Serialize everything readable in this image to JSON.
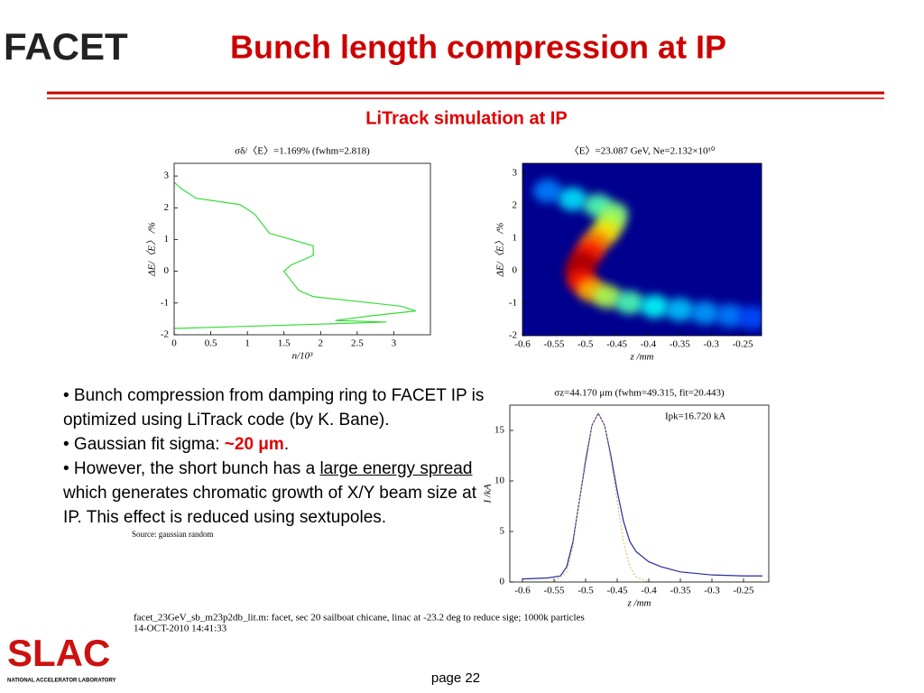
{
  "header": {
    "logo": "FACET",
    "title": "Bunch length compression at IP"
  },
  "subtitle": "LiTrack simulation at IP",
  "bullets": [
    [
      "• Bunch compression from damping ring to FACET IP is optimized using LiTrack code (by K. Bane)."
    ],
    [
      "• Gaussian fit sigma: ",
      "~20 μm",
      "."
    ],
    [
      "• However, the short bunch has a ",
      "large energy spread",
      " which generates chromatic growth of X/Y beam size at IP. This effect is reduced using sextupoles."
    ]
  ],
  "source": "Source: gaussian random",
  "footer": {
    "file": "facet_23GeV_sb_m23p2db_lit.m:  facet, sec 20 sailboat chicane, linac at -23.2 deg to reduce sige; 1000k particles",
    "date": "14-OCT-2010 14:41:33",
    "page": "page 22"
  },
  "lab": {
    "logo": "SLAC",
    "tagline": "NATIONAL ACCELERATOR LABORATORY"
  },
  "chart_data": [
    {
      "type": "line",
      "orientation": "horizontal",
      "title": "σδ/〈E〉=1.169% (fwhm=2.818)",
      "xlabel": "n/10³",
      "ylabel": "ΔE/〈E〉 /%",
      "xlim": [
        0,
        3.5
      ],
      "xticks": [
        0,
        0.5,
        1,
        1.5,
        2,
        2.5,
        3
      ],
      "ylim": [
        -2,
        3.4
      ],
      "yticks": [
        -2,
        -1,
        0,
        1,
        2,
        3
      ],
      "series": [
        {
          "color": "#33dd33",
          "y": [
            2.8,
            2.6,
            2.3,
            2.1,
            1.8,
            1.5,
            1.2,
            1.0,
            0.8,
            0.5,
            0.2,
            0,
            -0.3,
            -0.6,
            -0.8,
            -0.95,
            -1.1,
            -1.25,
            -1.4,
            -1.55,
            -1.6,
            -1.7,
            -1.8
          ],
          "values": [
            0,
            0.1,
            0.3,
            0.9,
            1.1,
            1.2,
            1.3,
            1.6,
            1.9,
            1.9,
            1.6,
            1.5,
            1.6,
            1.7,
            1.9,
            2.5,
            3.1,
            3.3,
            2.7,
            2.2,
            2.9,
            1.5,
            0
          ]
        }
      ]
    },
    {
      "type": "density",
      "title": "〈E〉=23.087 GeV, Ne=2.132×10¹⁰",
      "xlabel": "z /mm",
      "ylabel": "ΔE/〈E〉 /%",
      "background": "#00008f",
      "xlim": [
        -0.6,
        -0.22
      ],
      "xticks": [
        -0.6,
        -0.55,
        -0.5,
        -0.45,
        -0.4,
        -0.35,
        -0.3,
        -0.25
      ],
      "ylim": [
        -2,
        3.3
      ],
      "yticks": [
        -2,
        -1,
        0,
        1,
        2,
        3
      ],
      "series": [
        {
          "x": [
            -0.56,
            -0.52,
            -0.48,
            -0.455,
            -0.46,
            -0.47,
            -0.485,
            -0.495,
            -0.505,
            -0.51,
            -0.505,
            -0.49,
            -0.465,
            -0.43,
            -0.39,
            -0.35,
            -0.31,
            -0.27,
            -0.235
          ],
          "values": [
            2.45,
            2.2,
            2.0,
            1.75,
            1.45,
            1.15,
            0.85,
            0.55,
            0.25,
            -0.05,
            -0.35,
            -0.6,
            -0.8,
            -0.98,
            -1.1,
            -1.2,
            -1.3,
            -1.38,
            -1.45
          ],
          "intensity": [
            0.25,
            0.35,
            0.45,
            0.5,
            0.55,
            0.65,
            0.75,
            0.85,
            0.95,
            0.95,
            0.85,
            0.7,
            0.55,
            0.45,
            0.38,
            0.32,
            0.28,
            0.25,
            0.2
          ]
        }
      ]
    },
    {
      "type": "line",
      "title": "σz=44.170 μm (fwhm=49.315, fit=20.443)",
      "annotation": "Ipk=16.720 kA",
      "xlabel": "z /mm",
      "ylabel": "I /kA",
      "xlim": [
        -0.62,
        -0.21
      ],
      "xticks": [
        -0.6,
        -0.55,
        -0.5,
        -0.45,
        -0.4,
        -0.35,
        -0.3,
        -0.25
      ],
      "ylim": [
        0,
        17.5
      ],
      "yticks": [
        0,
        5,
        10,
        15
      ],
      "series": [
        {
          "color": "#2a2aa0",
          "x": [
            -0.6,
            -0.56,
            -0.54,
            -0.53,
            -0.52,
            -0.51,
            -0.5,
            -0.49,
            -0.48,
            -0.47,
            -0.46,
            -0.45,
            -0.44,
            -0.43,
            -0.42,
            -0.4,
            -0.38,
            -0.35,
            -0.3,
            -0.25,
            -0.22
          ],
          "values": [
            0.3,
            0.4,
            0.6,
            1.5,
            4,
            8,
            12,
            15.5,
            16.7,
            15.5,
            12.5,
            9,
            6,
            4,
            3,
            2,
            1.5,
            1,
            0.7,
            0.6,
            0.6
          ]
        },
        {
          "color": "#e0c070",
          "dash": true,
          "x": [
            -0.6,
            -0.55,
            -0.53,
            -0.52,
            -0.51,
            -0.5,
            -0.49,
            -0.48,
            -0.47,
            -0.46,
            -0.45,
            -0.44,
            -0.43,
            -0.42,
            -0.4,
            -0.22
          ],
          "values": [
            0,
            0,
            1,
            3.5,
            8,
            12.5,
            15.5,
            16.7,
            15.5,
            12,
            8,
            4,
            1.5,
            0.5,
            0,
            0
          ]
        }
      ]
    }
  ]
}
